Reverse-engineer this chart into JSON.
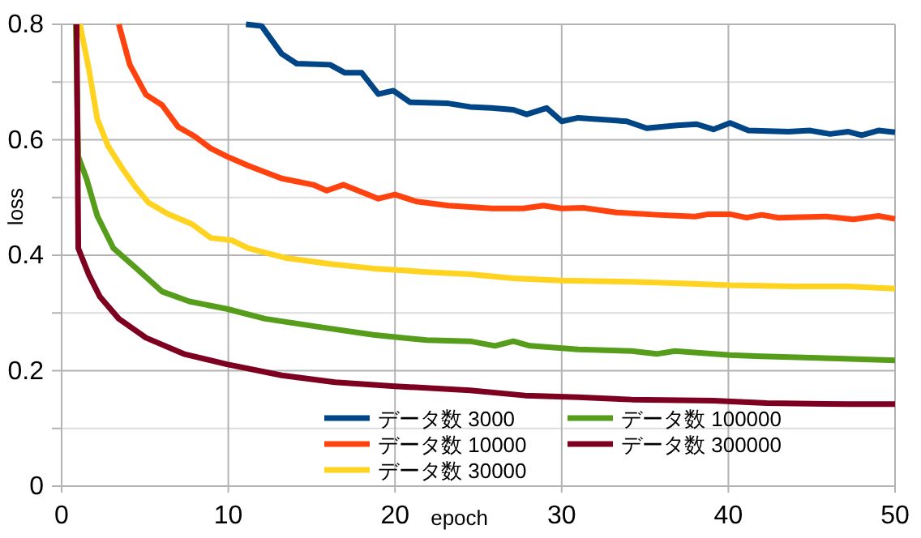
{
  "chart_data": {
    "type": "line",
    "xlabel": "epoch",
    "ylabel": "loss",
    "xlim": [
      0,
      50
    ],
    "xticks": [
      0,
      10,
      20,
      30,
      40,
      50
    ],
    "ylim": [
      0,
      0.8
    ],
    "yticks": [
      0,
      {
        "value": 0.1,
        "label": null
      },
      0.2,
      {
        "value": 0.3,
        "label": null
      },
      0.4,
      {
        "value": 0.5,
        "label": null
      },
      0.6,
      {
        "value": 0.7,
        "label": null
      },
      0.8
    ],
    "grid": true,
    "legend": "bottom",
    "marker": "none",
    "line_style": "solid",
    "series": [
      {
        "name": "データ数 3000",
        "color": "#004586",
        "x": [
          11.06,
          12.0,
          13.2,
          14.1,
          16.1,
          17.0,
          18.0,
          19.0,
          19.9,
          20.9,
          23.2,
          24.5,
          25.8,
          27.1,
          27.9,
          29.1,
          30.0,
          31.0,
          33.9,
          35.1,
          36.9,
          38.1,
          39.1,
          40.1,
          41.2,
          43.6,
          44.9,
          46.1,
          47.2,
          48.0,
          49.0,
          50
        ],
        "values": [
          0.8,
          0.797,
          0.749,
          0.732,
          0.73,
          0.716,
          0.716,
          0.679,
          0.685,
          0.665,
          0.663,
          0.657,
          0.655,
          0.652,
          0.644,
          0.655,
          0.632,
          0.638,
          0.632,
          0.62,
          0.625,
          0.627,
          0.618,
          0.629,
          0.616,
          0.614,
          0.616,
          0.61,
          0.614,
          0.608,
          0.616,
          0.613
        ]
      },
      {
        "name": "データ数 10000",
        "color": "#ff420e",
        "x": [
          3.43,
          4.09,
          5.06,
          6.03,
          7.0,
          7.98,
          8.95,
          9.92,
          11.2,
          13.2,
          15.1,
          15.9,
          16.9,
          19.0,
          20.0,
          21.3,
          23.2,
          25.8,
          27.7,
          28.9,
          30.0,
          31.3,
          33.3,
          35.7,
          38.0,
          38.8,
          40.1,
          41.1,
          42.0,
          43.0,
          45.9,
          47.5,
          49.0,
          50
        ],
        "values": [
          0.8,
          0.73,
          0.678,
          0.66,
          0.622,
          0.606,
          0.585,
          0.571,
          0.555,
          0.533,
          0.522,
          0.512,
          0.522,
          0.498,
          0.505,
          0.493,
          0.486,
          0.481,
          0.481,
          0.486,
          0.481,
          0.482,
          0.474,
          0.47,
          0.467,
          0.471,
          0.471,
          0.465,
          0.47,
          0.465,
          0.467,
          0.462,
          0.468,
          0.463
        ]
      },
      {
        "name": "データ数 30000",
        "color": "#ffd320",
        "x": [
          1.1,
          1.65,
          2.14,
          2.79,
          3.6,
          4.41,
          5.22,
          6.35,
          7.81,
          8.95,
          10.2,
          11.2,
          13.5,
          16.1,
          18.7,
          21.9,
          24.5,
          27.1,
          30.0,
          34.2,
          37.5,
          40.1,
          44.0,
          47.2,
          50
        ],
        "values": [
          0.8,
          0.72,
          0.636,
          0.589,
          0.552,
          0.519,
          0.491,
          0.472,
          0.454,
          0.43,
          0.426,
          0.412,
          0.395,
          0.385,
          0.377,
          0.371,
          0.367,
          0.36,
          0.356,
          0.354,
          0.351,
          0.348,
          0.346,
          0.346,
          0.342
        ]
      },
      {
        "name": "データ数 100000",
        "color": "#579d1c",
        "x": [
          0.85,
          1.0,
          1.49,
          2.14,
          3.11,
          4.41,
          6.03,
          7.66,
          9.92,
          12.2,
          15.4,
          18.7,
          21.9,
          24.5,
          26.0,
          27.1,
          28.1,
          31.0,
          34.2,
          35.7,
          36.8,
          40.1,
          42.0,
          46.6,
          50
        ],
        "values": [
          0.8,
          0.571,
          0.533,
          0.468,
          0.412,
          0.379,
          0.337,
          0.32,
          0.307,
          0.29,
          0.276,
          0.262,
          0.253,
          0.251,
          0.243,
          0.251,
          0.243,
          0.237,
          0.234,
          0.229,
          0.234,
          0.227,
          0.225,
          0.221,
          0.218
        ]
      },
      {
        "name": "データ数 300000",
        "color": "#7e0021",
        "x": [
          0.9,
          1.0,
          1.65,
          2.3,
          3.43,
          5.06,
          7.33,
          9.92,
          13.2,
          16.4,
          20.0,
          24.5,
          27.8,
          31.0,
          34.2,
          39.1,
          42.3,
          47.2,
          50
        ],
        "values": [
          0.8,
          0.412,
          0.365,
          0.328,
          0.29,
          0.257,
          0.229,
          0.211,
          0.192,
          0.18,
          0.173,
          0.166,
          0.157,
          0.154,
          0.15,
          0.148,
          0.144,
          0.142,
          0.142
        ]
      }
    ]
  }
}
